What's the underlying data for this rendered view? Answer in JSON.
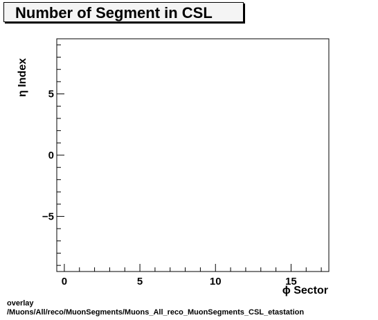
{
  "chart_data": {
    "type": "scatter",
    "title": "Number of Segment in CSL",
    "xlabel": "ϕ Sector",
    "ylabel": "η Index",
    "xlim": [
      -0.5,
      17.5
    ],
    "ylim": [
      -9.5,
      9.5
    ],
    "xticks": [
      "0",
      "5",
      "10",
      "15"
    ],
    "yticks": [
      "−5",
      "0",
      "5"
    ],
    "series": [],
    "grid": false
  },
  "footer": {
    "line1": "overlay",
    "line2": "/Muons/All/reco/MuonSegments/Muons_All_reco_MuonSegments_CSL_etastation"
  }
}
